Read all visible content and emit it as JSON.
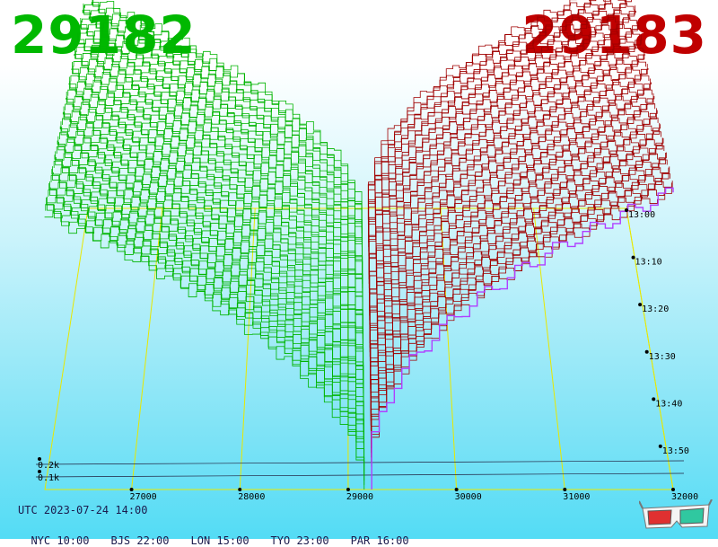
{
  "header": {
    "bid_price": "29182",
    "ask_price": "29183",
    "bid_color": "#00b800",
    "ask_color": "#c00000"
  },
  "footer": {
    "utc": "UTC 2023-07-24 14:00",
    "zones": [
      {
        "label": "NYC 10:00"
      },
      {
        "label": "BJS 22:00"
      },
      {
        "label": "LON 15:00"
      },
      {
        "label": "TYO 23:00"
      },
      {
        "label": "PAR 16:00"
      }
    ]
  },
  "icons": {
    "glasses": "3d-glasses-icon"
  },
  "chart_data": {
    "type": "area",
    "title": "",
    "x_ticks": [
      "27000",
      "28000",
      "29000",
      "30000",
      "31000",
      "32000"
    ],
    "x_values": [
      27000,
      28000,
      29000,
      30000,
      31000,
      32000
    ],
    "xlim": [
      26200,
      32000
    ],
    "depth_ticks": [
      "0.1k",
      "0.2k"
    ],
    "depth_values": [
      100,
      200
    ],
    "time_ticks": [
      "13:00",
      "13:10",
      "13:20",
      "13:30",
      "13:40",
      "13:50"
    ],
    "mid_price": 29182.5,
    "series": [
      {
        "name": "bids",
        "color": "#00b400"
      },
      {
        "name": "asks",
        "color": "#a00000"
      }
    ],
    "latest_ask_color": "#b040ff",
    "grid_color": "#e8e800",
    "snapshots": 60
  }
}
